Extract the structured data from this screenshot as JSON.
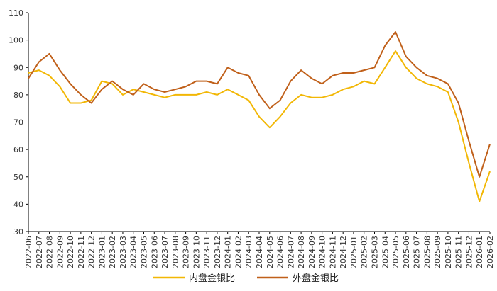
{
  "chart_data": {
    "type": "line",
    "title": "",
    "xlabel": "",
    "ylabel": "",
    "ylim": [
      30,
      110
    ],
    "yticks": [
      30,
      40,
      50,
      60,
      70,
      80,
      90,
      100,
      110
    ],
    "grid": false,
    "legend_position": "bottom",
    "x_tick_labels": [
      "2022-06",
      "2022-07",
      "2022-08",
      "2022-09",
      "2022-10",
      "2022-11",
      "2022-12",
      "2023-01",
      "2023-02",
      "2023-03",
      "2023-04",
      "2023-05",
      "2023-06",
      "2023-07",
      "2023-08",
      "2023-09",
      "2023-10",
      "2023-11",
      "2023-12",
      "2024-01",
      "2024-02",
      "2024-03",
      "2024-04",
      "2024-05",
      "2024-06",
      "2024-07",
      "2024-08",
      "2024-09",
      "2024-10",
      "2024-11",
      "2024-12",
      "2025-01",
      "2025-02",
      "2025-03",
      "2025-04",
      "2025-05",
      "2025-06",
      "2025-07",
      "2025-08",
      "2025-09",
      "2025-10",
      "2025-11",
      "2025-12",
      "2026-01",
      "2026-02"
    ],
    "series": [
      {
        "name": "内盘金银比",
        "color": "#F2B705",
        "x": [
          "2022-06",
          "2022-07",
          "2022-08",
          "2022-09",
          "2022-10",
          "2022-11",
          "2022-12",
          "2023-01",
          "2023-02",
          "2023-03",
          "2023-04",
          "2023-05",
          "2023-06",
          "2023-07",
          "2023-08",
          "2023-09",
          "2023-10",
          "2023-11",
          "2023-12",
          "2024-01",
          "2024-02",
          "2024-03",
          "2024-04",
          "2024-05",
          "2024-06",
          "2024-07",
          "2024-08",
          "2024-09",
          "2024-10",
          "2024-11",
          "2024-12",
          "2025-01",
          "2025-02",
          "2025-03",
          "2025-04",
          "2025-05",
          "2025-06",
          "2025-07",
          "2025-08",
          "2025-09",
          "2025-10",
          "2025-11",
          "2025-12",
          "2026-01",
          "2026-02"
        ],
        "values": [
          88,
          89,
          87,
          83,
          77,
          77,
          78,
          85,
          84,
          80,
          82,
          81,
          80,
          79,
          80,
          80,
          80,
          81,
          80,
          82,
          80,
          78,
          72,
          68,
          72,
          77,
          80,
          79,
          79,
          80,
          82,
          83,
          85,
          84,
          90,
          96,
          90,
          86,
          84,
          83,
          81,
          70,
          55,
          41,
          52
        ]
      },
      {
        "name": "外盘金银比",
        "color": "#C0601A",
        "x": [
          "2022-06",
          "2022-07",
          "2022-08",
          "2022-09",
          "2022-10",
          "2022-11",
          "2022-12",
          "2023-01",
          "2023-02",
          "2023-03",
          "2023-04",
          "2023-05",
          "2023-06",
          "2023-07",
          "2023-08",
          "2023-09",
          "2023-10",
          "2023-11",
          "2023-12",
          "2024-01",
          "2024-02",
          "2024-03",
          "2024-04",
          "2024-05",
          "2024-06",
          "2024-07",
          "2024-08",
          "2024-09",
          "2024-10",
          "2024-11",
          "2024-12",
          "2025-01",
          "2025-02",
          "2025-03",
          "2025-04",
          "2025-05",
          "2025-06",
          "2025-07",
          "2025-08",
          "2025-09",
          "2025-10",
          "2025-11",
          "2025-12",
          "2026-01",
          "2026-02"
        ],
        "values": [
          86,
          92,
          95,
          89,
          84,
          80,
          77,
          82,
          85,
          82,
          80,
          84,
          82,
          81,
          82,
          83,
          85,
          85,
          84,
          90,
          88,
          87,
          80,
          75,
          78,
          85,
          89,
          86,
          84,
          87,
          88,
          88,
          89,
          90,
          98,
          103,
          94,
          90,
          87,
          86,
          84,
          77,
          63,
          50,
          62
        ]
      }
    ]
  }
}
